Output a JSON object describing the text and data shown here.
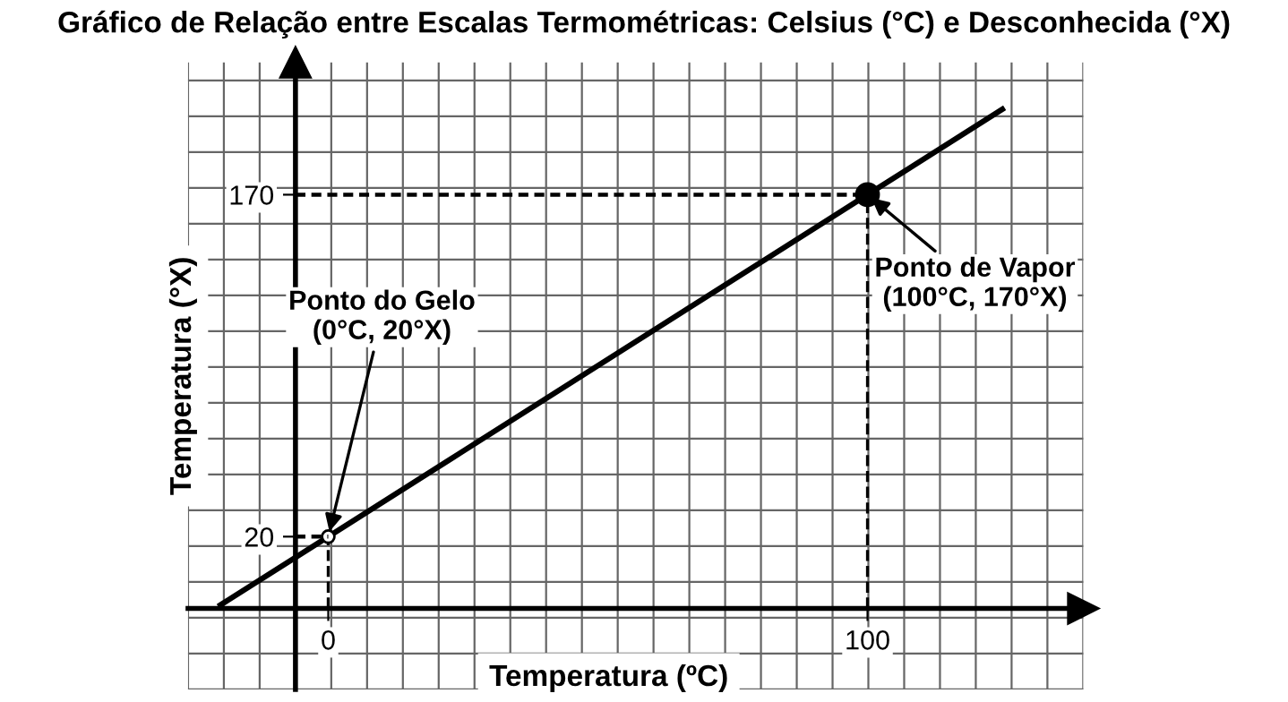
{
  "chart_data": {
    "type": "line",
    "title": "Gráfico de Relação entre Escalas Termométricas: Celsius (°C) e Desconhecida (°X)",
    "xlabel": "Temperatura (ºC)",
    "ylabel": "Temperatura (°X)",
    "x": [
      -20,
      0,
      100,
      125
    ],
    "series": [
      {
        "color": "#000000",
        "values": [
          -10,
          20,
          170,
          207.5
        ]
      }
    ],
    "xlim": [
      -26,
      140
    ],
    "ylim": [
      -47,
      228
    ],
    "xticks": [
      0,
      100
    ],
    "yticks": [
      20,
      170
    ],
    "grid": true,
    "line_style": "solid",
    "ref_lines": [
      {
        "axis": "y",
        "value": 170,
        "line_style": "dashed"
      },
      {
        "axis": "x",
        "value": 0,
        "line_style": "dashed"
      },
      {
        "axis": "x",
        "value": 100,
        "line_style": "dashed"
      }
    ],
    "annotations": [
      {
        "text": "Ponto do Gelo\n(0°C, 20°X)",
        "x": 0,
        "y": 20
      },
      {
        "text": "Ponto de Vapor\n(100°C, 170°X)",
        "x": 100,
        "y": 170
      }
    ]
  }
}
